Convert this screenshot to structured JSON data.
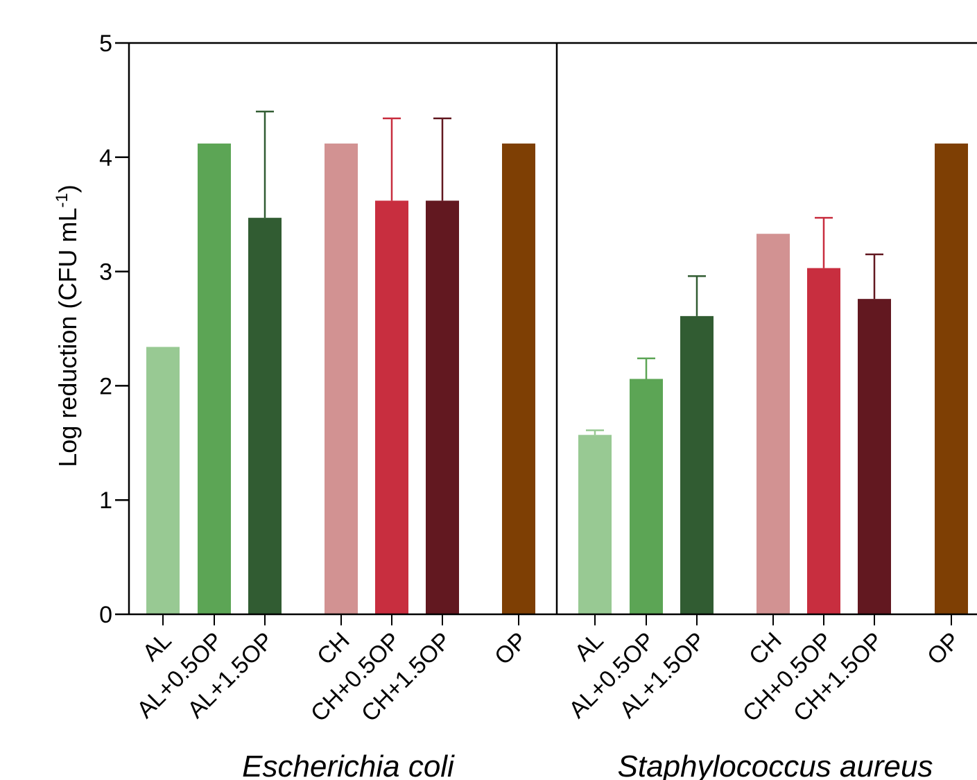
{
  "chart_data": {
    "type": "bar",
    "title": "",
    "ylabel": "Log reduction (CFU mL",
    "ylabel_superscript": "-1",
    "ylabel_close": ")",
    "ylim": [
      0,
      5
    ],
    "yticks": [
      0,
      1,
      2,
      3,
      4,
      5
    ],
    "yticks_text": [
      "0",
      "1",
      "2",
      "3",
      "4",
      "5"
    ],
    "grid": false,
    "legend": "none",
    "groups": [
      {
        "name": "Escherichia coli",
        "categories": [
          "AL",
          "AL+0.5OP",
          "AL+1.5OP",
          "CH",
          "CH+0.5OP",
          "CH+1.5OP",
          "OP"
        ],
        "values": [
          2.34,
          4.12,
          3.47,
          4.12,
          3.62,
          3.62,
          4.12
        ],
        "errors": [
          0,
          0,
          0.93,
          0,
          0.72,
          0.72,
          0
        ]
      },
      {
        "name": "Staphylococcus aureus",
        "categories": [
          "AL",
          "AL+0.5OP",
          "AL+1.5OP",
          "CH",
          "CH+0.5OP",
          "CH+1.5OP",
          "OP"
        ],
        "values": [
          1.57,
          2.06,
          2.61,
          3.33,
          3.03,
          2.76,
          4.12
        ],
        "errors": [
          0.04,
          0.18,
          0.35,
          0,
          0.44,
          0.39,
          0
        ]
      }
    ],
    "colors": {
      "AL": "#98c993",
      "AL+0.5OP": "#5ca555",
      "AL+1.5OP": "#315c32",
      "CH": "#d29292",
      "CH+0.5OP": "#c82e3f",
      "CH+1.5OP": "#621820",
      "OP": "#7e3f04"
    }
  }
}
